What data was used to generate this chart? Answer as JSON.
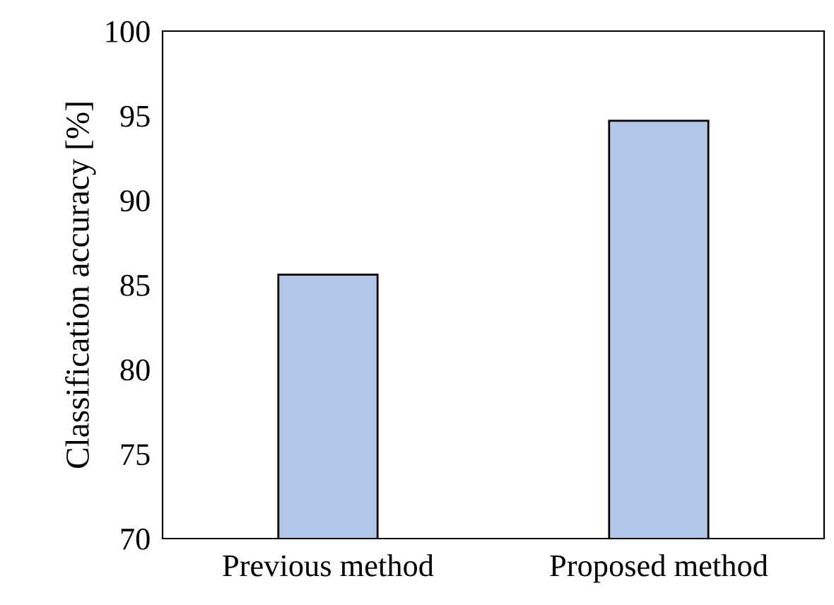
{
  "chart_data": {
    "type": "bar",
    "ylabel": "Classification accuracy [%]",
    "categories": [
      "Previous method",
      "Proposed method"
    ],
    "values": [
      85.6,
      94.7
    ],
    "color": "#b4c6e7",
    "ylim": [
      70,
      100
    ],
    "yticks": [
      70,
      75,
      80,
      85,
      90,
      95,
      100
    ],
    "grid": false
  }
}
